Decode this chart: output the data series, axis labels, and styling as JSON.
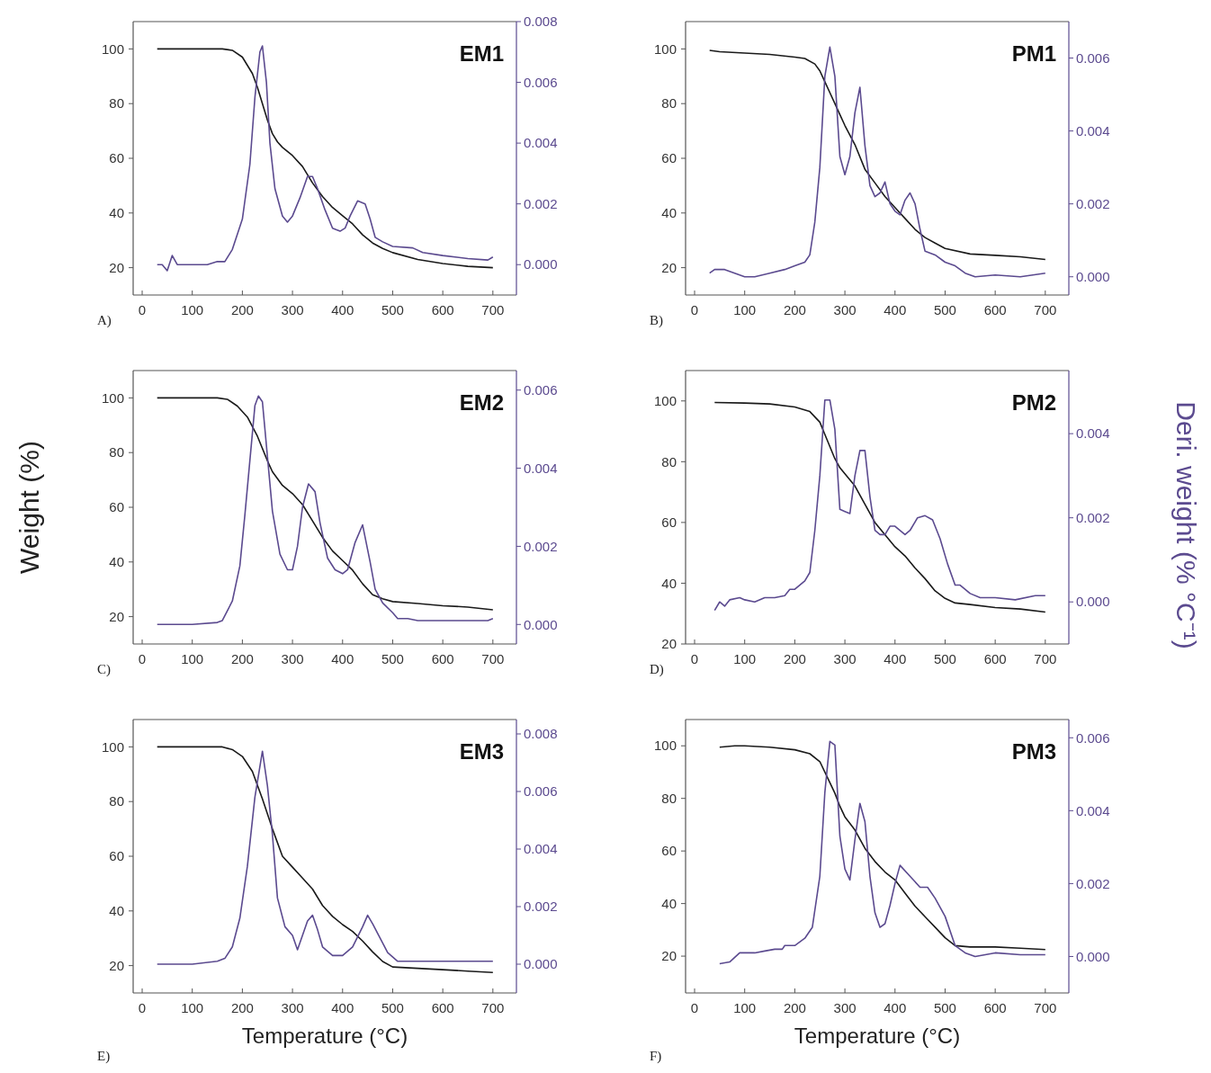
{
  "chart_data": [
    {
      "type": "line",
      "title": "EM1",
      "annotations": [
        "A)"
      ],
      "xlim": [
        -18,
        747
      ],
      "xticks": [
        0,
        100,
        200,
        300,
        400,
        500,
        600,
        700
      ],
      "ylim": [
        10,
        110
      ],
      "yticks": [
        20,
        40,
        60,
        80,
        100
      ],
      "y2lim": [
        -0.001,
        0.008
      ],
      "y2ticks": [
        {
          "value": 0,
          "label": "0.000"
        },
        {
          "value": 0.002,
          "label": "0.002"
        },
        {
          "value": 0.004,
          "label": "0.004"
        },
        {
          "value": 0.006,
          "label": "0.006"
        },
        {
          "value": 0.008,
          "label": "0.008"
        }
      ],
      "series": [
        {
          "color": "#1a1a1a",
          "x": [
            30,
            160,
            180,
            200,
            220,
            230,
            240,
            250,
            260,
            270,
            280,
            300,
            320,
            340,
            360,
            380,
            400,
            420,
            440,
            460,
            480,
            500,
            550,
            600,
            650,
            700
          ],
          "values": [
            100,
            100,
            99.5,
            97,
            91,
            86,
            80,
            74,
            69,
            66,
            64,
            61,
            57,
            51,
            46,
            42,
            39,
            36,
            32,
            29,
            27,
            25.5,
            23,
            21.5,
            20.5,
            20
          ]
        },
        {
          "color": "#5b4a8f",
          "axis": "y2",
          "x": [
            30,
            40,
            50,
            60,
            70,
            100,
            130,
            150,
            165,
            180,
            200,
            215,
            225,
            235,
            240,
            248,
            255,
            265,
            280,
            290,
            300,
            315,
            330,
            340,
            350,
            365,
            380,
            395,
            405,
            415,
            430,
            445,
            455,
            465,
            480,
            500,
            540,
            560,
            600,
            650,
            690,
            700
          ],
          "values": [
            0,
            0,
            -0.0002,
            0.0003,
            0,
            0,
            0,
            0.0001,
            0.0001,
            0.0005,
            0.0015,
            0.0033,
            0.0055,
            0.007,
            0.0072,
            0.006,
            0.004,
            0.0025,
            0.0016,
            0.0014,
            0.0016,
            0.0022,
            0.0029,
            0.0029,
            0.0025,
            0.0018,
            0.0012,
            0.0011,
            0.0012,
            0.0016,
            0.0021,
            0.002,
            0.0015,
            0.0009,
            0.00075,
            0.0006,
            0.00055,
            0.0004,
            0.0003,
            0.0002,
            0.00015,
            0.00025
          ]
        }
      ]
    },
    {
      "type": "line",
      "title": "PM1",
      "annotations": [
        "B)"
      ],
      "xlim": [
        -18,
        747
      ],
      "xticks": [
        0,
        100,
        200,
        300,
        400,
        500,
        600,
        700
      ],
      "ylim": [
        10,
        110
      ],
      "yticks": [
        20,
        40,
        60,
        80,
        100
      ],
      "y2lim": [
        -0.0005,
        0.007
      ],
      "y2ticks": [
        {
          "value": 0,
          "label": "0.000"
        },
        {
          "value": 0.002,
          "label": "0.002"
        },
        {
          "value": 0.004,
          "label": "0.004"
        },
        {
          "value": 0.006,
          "label": "0.006"
        }
      ],
      "series": [
        {
          "color": "#1a1a1a",
          "x": [
            30,
            50,
            100,
            150,
            200,
            220,
            240,
            250,
            260,
            270,
            280,
            290,
            300,
            320,
            340,
            360,
            380,
            400,
            420,
            440,
            460,
            480,
            500,
            550,
            600,
            650,
            700
          ],
          "values": [
            99.5,
            99,
            98.5,
            98,
            97,
            96.5,
            94.5,
            92,
            88,
            84,
            80,
            76,
            72,
            65,
            56,
            51,
            46,
            42,
            38,
            34,
            31,
            29,
            27,
            25,
            24.5,
            24,
            23
          ]
        },
        {
          "color": "#5b4a8f",
          "axis": "y2",
          "x": [
            30,
            40,
            60,
            80,
            100,
            120,
            150,
            180,
            200,
            220,
            230,
            240,
            250,
            260,
            270,
            280,
            290,
            300,
            310,
            320,
            330,
            340,
            350,
            360,
            370,
            380,
            390,
            400,
            410,
            420,
            430,
            440,
            450,
            460,
            480,
            500,
            520,
            540,
            560,
            600,
            650,
            700
          ],
          "values": [
            0.0001,
            0.0002,
            0.0002,
            0.0001,
            0,
            0,
            0.0001,
            0.0002,
            0.0003,
            0.0004,
            0.0006,
            0.0015,
            0.003,
            0.0055,
            0.0063,
            0.0055,
            0.0033,
            0.0028,
            0.0033,
            0.0045,
            0.0052,
            0.0036,
            0.0025,
            0.0022,
            0.0023,
            0.0026,
            0.002,
            0.0018,
            0.0017,
            0.0021,
            0.0023,
            0.002,
            0.0013,
            0.0007,
            0.0006,
            0.0004,
            0.0003,
            0.0001,
            0,
            5e-05,
            0,
            0.0001
          ]
        }
      ]
    },
    {
      "type": "line",
      "title": "EM2",
      "ylabel": "Weight (%)",
      "annotations": [
        "C)"
      ],
      "xlim": [
        -18,
        747
      ],
      "xticks": [
        0,
        100,
        200,
        300,
        400,
        500,
        600,
        700
      ],
      "ylim": [
        10,
        110
      ],
      "yticks": [
        20,
        40,
        60,
        80,
        100
      ],
      "y2lim": [
        -0.0005,
        0.0065
      ],
      "y2ticks": [
        {
          "value": 0,
          "label": "0.000"
        },
        {
          "value": 0.002,
          "label": "0.002"
        },
        {
          "value": 0.004,
          "label": "0.004"
        },
        {
          "value": 0.006,
          "label": "0.006"
        }
      ],
      "series": [
        {
          "color": "#1a1a1a",
          "x": [
            30,
            150,
            170,
            190,
            210,
            230,
            250,
            260,
            280,
            300,
            320,
            340,
            360,
            380,
            400,
            420,
            440,
            460,
            480,
            500,
            550,
            600,
            650,
            700
          ],
          "values": [
            100,
            100,
            99.5,
            97,
            93,
            86,
            77,
            73,
            68,
            65,
            61,
            55,
            49,
            44,
            40.5,
            37,
            32,
            28,
            26.5,
            25.5,
            24.8,
            24,
            23.5,
            22.5
          ]
        },
        {
          "color": "#5b4a8f",
          "axis": "y2",
          "x": [
            30,
            60,
            100,
            150,
            160,
            180,
            195,
            205,
            215,
            225,
            232,
            240,
            250,
            260,
            275,
            290,
            300,
            310,
            320,
            332,
            345,
            355,
            370,
            385,
            400,
            410,
            425,
            440,
            455,
            465,
            480,
            500,
            510,
            530,
            550,
            600,
            650,
            690,
            700
          ],
          "values": [
            0,
            0,
            0,
            5e-05,
            0.0001,
            0.0006,
            0.0015,
            0.0028,
            0.0042,
            0.0056,
            0.00585,
            0.0057,
            0.0043,
            0.0029,
            0.0018,
            0.0014,
            0.0014,
            0.002,
            0.003,
            0.0036,
            0.0034,
            0.0026,
            0.0017,
            0.0014,
            0.0013,
            0.0014,
            0.0021,
            0.00255,
            0.0016,
            0.0009,
            0.00055,
            0.0003,
            0.00015,
            0.00015,
            0.0001,
            0.0001,
            0.0001,
            0.0001,
            0.00015
          ]
        }
      ]
    },
    {
      "type": "line",
      "title": "PM2",
      "y2label": "Deri. weight (% °C⁻¹)",
      "annotations": [
        "D)"
      ],
      "xlim": [
        -18,
        747
      ],
      "xticks": [
        0,
        100,
        200,
        300,
        400,
        500,
        600,
        700
      ],
      "ylim": [
        20,
        110
      ],
      "yticks": [
        20,
        40,
        60,
        80,
        100
      ],
      "y2lim": [
        -0.001,
        0.0055
      ],
      "y2ticks": [
        {
          "value": 0,
          "label": "0.000"
        },
        {
          "value": 0.002,
          "label": "0.002"
        },
        {
          "value": 0.004,
          "label": "0.004"
        }
      ],
      "series": [
        {
          "color": "#1a1a1a",
          "x": [
            40,
            100,
            150,
            200,
            230,
            250,
            260,
            270,
            280,
            290,
            300,
            320,
            340,
            360,
            380,
            400,
            420,
            440,
            460,
            480,
            500,
            520,
            550,
            600,
            650,
            700
          ],
          "values": [
            99.5,
            99.3,
            99,
            98,
            96.5,
            93,
            89,
            85,
            81,
            78,
            76,
            72,
            66,
            60,
            56,
            52,
            49,
            45,
            41.5,
            37.5,
            35,
            33.5,
            33,
            32,
            31.5,
            30.5
          ]
        },
        {
          "color": "#5b4a8f",
          "axis": "y2",
          "x": [
            40,
            50,
            60,
            70,
            90,
            100,
            120,
            140,
            160,
            180,
            190,
            200,
            220,
            230,
            240,
            250,
            260,
            270,
            280,
            290,
            300,
            310,
            320,
            330,
            340,
            350,
            360,
            370,
            380,
            390,
            400,
            420,
            430,
            445,
            460,
            475,
            490,
            505,
            520,
            530,
            550,
            570,
            600,
            640,
            680,
            700
          ],
          "values": [
            -0.0002,
            0,
            -0.0001,
            5e-05,
            0.0001,
            5e-05,
            0,
            0.0001,
            0.0001,
            0.00015,
            0.0003,
            0.0003,
            0.0005,
            0.0007,
            0.0017,
            0.003,
            0.0048,
            0.0048,
            0.0041,
            0.0022,
            0.00215,
            0.0021,
            0.003,
            0.0036,
            0.0036,
            0.0025,
            0.0017,
            0.0016,
            0.0016,
            0.0018,
            0.0018,
            0.0016,
            0.0017,
            0.002,
            0.00205,
            0.00195,
            0.0015,
            0.0009,
            0.0004,
            0.0004,
            0.0002,
            0.0001,
            0.0001,
            5e-05,
            0.00015,
            0.00015
          ]
        }
      ]
    },
    {
      "type": "line",
      "title": "EM3",
      "xlabel": "Temperature (°C)",
      "annotations": [
        "E)"
      ],
      "xlim": [
        -18,
        747
      ],
      "xticks": [
        0,
        100,
        200,
        300,
        400,
        500,
        600,
        700
      ],
      "ylim": [
        10,
        110
      ],
      "yticks": [
        20,
        40,
        60,
        80,
        100
      ],
      "y2lim": [
        -0.001,
        0.0085
      ],
      "y2ticks": [
        {
          "value": 0,
          "label": "0.000"
        },
        {
          "value": 0.002,
          "label": "0.002"
        },
        {
          "value": 0.004,
          "label": "0.004"
        },
        {
          "value": 0.006,
          "label": "0.006"
        },
        {
          "value": 0.008,
          "label": "0.008"
        }
      ],
      "series": [
        {
          "color": "#1a1a1a",
          "x": [
            30,
            160,
            180,
            200,
            220,
            240,
            260,
            280,
            300,
            320,
            340,
            360,
            380,
            400,
            420,
            440,
            460,
            480,
            500,
            550,
            600,
            650,
            700
          ],
          "values": [
            100,
            100,
            99,
            96.5,
            91,
            81,
            70,
            60,
            56,
            52,
            48,
            42,
            38,
            35,
            32.5,
            29,
            25,
            21.5,
            19.5,
            19,
            18.5,
            18,
            17.5
          ]
        },
        {
          "color": "#5b4a8f",
          "axis": "y2",
          "x": [
            30,
            60,
            100,
            150,
            165,
            180,
            195,
            210,
            225,
            240,
            250,
            260,
            270,
            285,
            300,
            310,
            320,
            330,
            340,
            350,
            360,
            380,
            400,
            420,
            440,
            450,
            460,
            475,
            490,
            510,
            540,
            600,
            650,
            700
          ],
          "values": [
            0,
            0,
            0,
            0.0001,
            0.0002,
            0.0006,
            0.0016,
            0.0034,
            0.0058,
            0.0074,
            0.0062,
            0.0045,
            0.0023,
            0.0013,
            0.001,
            0.0005,
            0.001,
            0.0015,
            0.0017,
            0.0012,
            0.0006,
            0.0003,
            0.0003,
            0.0006,
            0.0013,
            0.0017,
            0.0014,
            0.0009,
            0.0004,
            0.0001,
            0.0001,
            0.0001,
            0.0001,
            0.0001
          ]
        }
      ]
    },
    {
      "type": "line",
      "title": "PM3",
      "xlabel": "Temperature (°C)",
      "annotations": [
        "F)"
      ],
      "xlim": [
        -18,
        747
      ],
      "xticks": [
        0,
        100,
        200,
        300,
        400,
        500,
        600,
        700
      ],
      "ylim": [
        6,
        110
      ],
      "yticks": [
        20,
        40,
        60,
        80,
        100
      ],
      "y2lim": [
        -0.001,
        0.0065
      ],
      "y2ticks": [
        {
          "value": 0,
          "label": "0.000"
        },
        {
          "value": 0.002,
          "label": "0.002"
        },
        {
          "value": 0.004,
          "label": "0.004"
        },
        {
          "value": 0.006,
          "label": "0.006"
        }
      ],
      "series": [
        {
          "color": "#1a1a1a",
          "x": [
            50,
            80,
            100,
            150,
            200,
            230,
            250,
            270,
            280,
            290,
            300,
            320,
            340,
            360,
            380,
            400,
            420,
            440,
            460,
            480,
            500,
            520,
            550,
            600,
            650,
            700
          ],
          "values": [
            99.5,
            100,
            100,
            99.5,
            98.5,
            97,
            94,
            86,
            82,
            77,
            73,
            68,
            61,
            56,
            52,
            49,
            44,
            39,
            35,
            31,
            27,
            24,
            23.5,
            23.5,
            23,
            22.5
          ]
        },
        {
          "color": "#5b4a8f",
          "axis": "y2",
          "x": [
            50,
            70,
            90,
            100,
            120,
            140,
            160,
            175,
            180,
            200,
            220,
            235,
            250,
            260,
            270,
            280,
            290,
            300,
            310,
            320,
            330,
            340,
            350,
            360,
            370,
            380,
            390,
            400,
            410,
            430,
            450,
            465,
            480,
            500,
            520,
            540,
            560,
            600,
            650,
            700
          ],
          "values": [
            -0.0002,
            -0.00015,
            0.0001,
            0.0001,
            0.0001,
            0.00015,
            0.0002,
            0.0002,
            0.0003,
            0.0003,
            0.0005,
            0.0008,
            0.0022,
            0.0045,
            0.0059,
            0.0058,
            0.0033,
            0.0024,
            0.0021,
            0.0032,
            0.0042,
            0.0037,
            0.0022,
            0.0012,
            0.0008,
            0.0009,
            0.0014,
            0.002,
            0.0025,
            0.0022,
            0.0019,
            0.0019,
            0.0016,
            0.0011,
            0.0003,
            0.0001,
            0,
            0.0001,
            5e-05,
            5e-05
          ]
        }
      ]
    }
  ]
}
